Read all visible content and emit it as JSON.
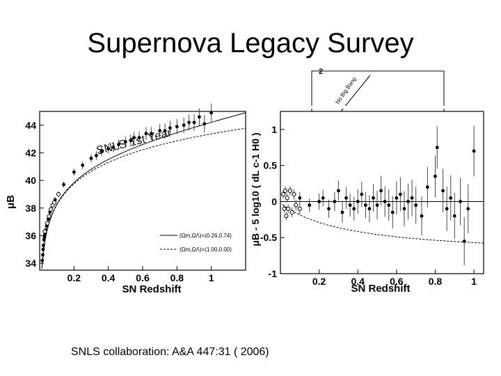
{
  "slide": {
    "title": "Supernova Legacy Survey",
    "citation": "SNLS collaboration: A&A 447:31 ( 2006)"
  },
  "background_fragment": {
    "tick_label": "2",
    "line_label": "No Big Bang"
  },
  "chart_data": [
    {
      "type": "scatter",
      "title": "",
      "annotation": "SNLS 1st Year",
      "xlabel": "SN Redshift",
      "ylabel": "μB",
      "xlim": [
        0,
        1.2
      ],
      "ylim": [
        33.5,
        45
      ],
      "xticks": [
        "0.2",
        "0.4",
        "0.6",
        "0.8",
        "1"
      ],
      "yticks": [
        "34",
        "36",
        "38",
        "40",
        "42",
        "44"
      ],
      "legend": {
        "placement": "bottom-right",
        "entries": [
          {
            "label": "(Ωm,ΩΛ)=(0.26,0.74)",
            "style": "solid"
          },
          {
            "label": "(Ωm,ΩΛ)=(1.00,0.00)",
            "style": "dashed"
          }
        ]
      },
      "series": [
        {
          "marker": "filled",
          "points": [
            [
              0.015,
              34.2
            ],
            [
              0.018,
              34.6
            ],
            [
              0.02,
              35.0
            ],
            [
              0.022,
              35.3
            ],
            [
              0.025,
              35.7
            ],
            [
              0.028,
              35.9
            ],
            [
              0.03,
              36.1
            ],
            [
              0.035,
              36.4
            ],
            [
              0.04,
              36.7
            ],
            [
              0.05,
              37.2
            ],
            [
              0.06,
              37.7
            ],
            [
              0.09,
              38.6
            ],
            [
              0.14,
              39.7
            ],
            [
              0.2,
              40.6
            ],
            [
              0.25,
              41.1
            ],
            [
              0.3,
              41.6
            ],
            [
              0.33,
              41.8
            ],
            [
              0.36,
              42.1
            ],
            [
              0.4,
              42.3
            ],
            [
              0.43,
              42.4
            ],
            [
              0.46,
              42.6
            ],
            [
              0.5,
              42.8
            ],
            [
              0.53,
              42.9
            ],
            [
              0.55,
              43.1
            ],
            [
              0.58,
              43.1
            ],
            [
              0.62,
              43.4
            ],
            [
              0.65,
              43.4
            ],
            [
              0.7,
              43.6
            ],
            [
              0.73,
              43.6
            ],
            [
              0.76,
              43.8
            ],
            [
              0.8,
              43.9
            ],
            [
              0.84,
              44.0
            ],
            [
              0.87,
              44.2
            ],
            [
              0.9,
              44.2
            ],
            [
              0.93,
              44.6
            ],
            [
              0.96,
              44.1
            ],
            [
              1.0,
              44.9
            ]
          ]
        },
        {
          "marker": "open",
          "points": [
            [
              0.03,
              36.3
            ],
            [
              0.045,
              36.9
            ],
            [
              0.055,
              37.4
            ],
            [
              0.065,
              37.9
            ],
            [
              0.075,
              38.2
            ],
            [
              0.085,
              38.4
            ],
            [
              0.11,
              39.0
            ]
          ]
        }
      ]
    },
    {
      "type": "scatter",
      "title": "",
      "xlabel": "SN Redshift",
      "ylabel": "μB - 5 log10 ( dL c-1 H0 )",
      "xlim": [
        0,
        1.05
      ],
      "ylim": [
        -1.0,
        1.25
      ],
      "xticks": [
        "0.2",
        "0.4",
        "0.6",
        "0.8",
        "1"
      ],
      "yticks": [
        "-1",
        "-0.5",
        "0",
        "0.5",
        "1"
      ],
      "series": [
        {
          "marker": "filled",
          "points": [
            [
              0.1,
              0.05
            ],
            [
              0.15,
              -0.05
            ],
            [
              0.2,
              0.0
            ],
            [
              0.22,
              0.05
            ],
            [
              0.25,
              -0.1
            ],
            [
              0.28,
              0.0
            ],
            [
              0.3,
              0.15
            ],
            [
              0.32,
              -0.15
            ],
            [
              0.34,
              0.05
            ],
            [
              0.36,
              -0.05
            ],
            [
              0.38,
              -0.1
            ],
            [
              0.4,
              0.0
            ],
            [
              0.42,
              0.1
            ],
            [
              0.44,
              -0.05
            ],
            [
              0.46,
              -0.1
            ],
            [
              0.48,
              0.05
            ],
            [
              0.5,
              -0.05
            ],
            [
              0.52,
              0.15
            ],
            [
              0.54,
              0.0
            ],
            [
              0.56,
              -0.05
            ],
            [
              0.58,
              -0.15
            ],
            [
              0.6,
              0.05
            ],
            [
              0.62,
              0.1
            ],
            [
              0.64,
              -0.1
            ],
            [
              0.66,
              0.0
            ],
            [
              0.68,
              0.05
            ],
            [
              0.7,
              -0.05
            ],
            [
              0.73,
              -0.2
            ],
            [
              0.76,
              0.2
            ],
            [
              0.8,
              0.35
            ],
            [
              0.81,
              0.75
            ],
            [
              0.84,
              0.15
            ],
            [
              0.86,
              -0.1
            ],
            [
              0.88,
              0.05
            ],
            [
              0.9,
              -0.2
            ],
            [
              0.93,
              0.0
            ],
            [
              0.95,
              -0.55
            ],
            [
              0.97,
              -0.1
            ],
            [
              1.0,
              0.7
            ]
          ]
        },
        {
          "marker": "open",
          "points": [
            [
              0.015,
              0.1
            ],
            [
              0.02,
              -0.1
            ],
            [
              0.025,
              0.15
            ],
            [
              0.03,
              -0.2
            ],
            [
              0.035,
              0.05
            ],
            [
              0.04,
              -0.1
            ],
            [
              0.05,
              0.15
            ],
            [
              0.06,
              -0.15
            ],
            [
              0.07,
              0.1
            ],
            [
              0.08,
              -0.05
            ],
            [
              0.1,
              -0.1
            ]
          ]
        }
      ]
    }
  ]
}
